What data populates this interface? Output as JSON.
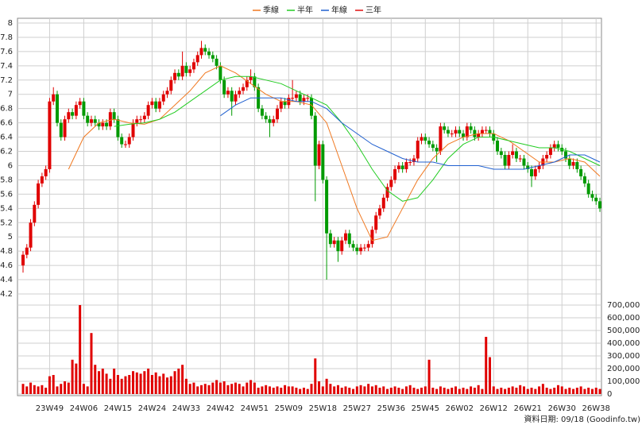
{
  "chart_data": {
    "type": "candlestick",
    "legend_position": "top",
    "grid": true,
    "up_color": "#e00000",
    "down_color": "#009a00",
    "volume_color": "#e00000",
    "footer": "資料日期: 09/18 (Goodinfo.tw)",
    "categories": [
      null,
      null,
      null,
      null,
      null,
      null,
      null,
      "23W49",
      null,
      null,
      null,
      null,
      null,
      null,
      null,
      null,
      "24W06",
      null,
      null,
      null,
      null,
      null,
      null,
      null,
      null,
      "24W15",
      null,
      null,
      null,
      null,
      null,
      null,
      null,
      null,
      "24W24",
      null,
      null,
      null,
      null,
      null,
      null,
      null,
      null,
      "24W33",
      null,
      null,
      null,
      null,
      null,
      null,
      null,
      null,
      "24W42",
      null,
      null,
      null,
      null,
      null,
      null,
      null,
      null,
      "24W51",
      null,
      null,
      null,
      null,
      null,
      null,
      null,
      null,
      "25W09",
      null,
      null,
      null,
      null,
      null,
      null,
      null,
      null,
      "25W18",
      null,
      null,
      null,
      null,
      null,
      null,
      null,
      null,
      "25W27",
      null,
      null,
      null,
      null,
      null,
      null,
      null,
      null,
      "25W36",
      null,
      null,
      null,
      null,
      null,
      null,
      null,
      null,
      "25W45",
      null,
      null,
      null,
      null,
      null,
      null,
      null,
      null,
      "26W02",
      null,
      null,
      null,
      null,
      null,
      null,
      null,
      null,
      "26W12",
      null,
      null,
      null,
      null,
      null,
      null,
      null,
      null,
      "26W21",
      null,
      null,
      null,
      null,
      null,
      null,
      null,
      null,
      "26W30",
      null,
      null,
      null,
      null,
      null,
      null,
      null,
      null,
      "26W38",
      null
    ],
    "open": [
      4.6,
      4.75,
      4.85,
      5.2,
      5.45,
      5.75,
      5.85,
      5.95,
      6.9,
      7.0,
      6.6,
      6.4,
      6.65,
      6.75,
      6.7,
      6.85,
      6.9,
      6.7,
      6.6,
      6.65,
      6.6,
      6.55,
      6.6,
      6.55,
      6.75,
      6.65,
      6.4,
      6.3,
      6.3,
      6.4,
      6.6,
      6.65,
      6.65,
      6.7,
      6.85,
      6.9,
      6.8,
      6.9,
      7.0,
      7.05,
      7.2,
      7.3,
      7.25,
      7.4,
      7.3,
      7.35,
      7.45,
      7.55,
      7.65,
      7.6,
      7.55,
      7.5,
      7.4,
      7.2,
      7.0,
      7.05,
      6.9,
      7.0,
      7.05,
      7.1,
      7.2,
      7.25,
      7.1,
      6.8,
      6.7,
      6.65,
      6.6,
      6.65,
      6.8,
      6.9,
      6.85,
      6.95,
      6.95,
      7.0,
      6.9,
      6.95,
      6.95,
      6.7,
      6.0,
      6.3,
      5.8,
      5.05,
      4.9,
      4.95,
      4.8,
      4.95,
      5.05,
      4.9,
      4.85,
      4.8,
      4.85,
      4.85,
      4.9,
      5.1,
      5.3,
      5.4,
      5.55,
      5.7,
      5.8,
      5.95,
      6.0,
      5.95,
      6.05,
      6.05,
      6.1,
      6.35,
      6.4,
      6.35,
      6.3,
      6.25,
      6.2,
      6.55,
      6.5,
      6.45,
      6.45,
      6.5,
      6.45,
      6.4,
      6.55,
      6.5,
      6.4,
      6.45,
      6.5,
      6.5,
      6.45,
      6.35,
      6.2,
      6.15,
      6.0,
      6.15,
      6.2,
      6.1,
      6.1,
      6.0,
      5.95,
      5.85,
      5.95,
      6.0,
      6.1,
      6.15,
      6.25,
      6.3,
      6.25,
      6.2,
      6.1,
      6.0,
      6.05,
      5.95,
      5.85,
      5.75,
      5.6,
      5.55,
      5.5
    ],
    "high": [
      4.8,
      4.9,
      5.25,
      5.5,
      5.8,
      5.9,
      6.0,
      6.95,
      7.1,
      7.05,
      6.65,
      6.7,
      6.8,
      6.8,
      6.9,
      6.95,
      6.95,
      6.75,
      6.7,
      6.7,
      6.65,
      6.65,
      6.65,
      6.8,
      6.8,
      6.7,
      6.45,
      6.35,
      6.45,
      6.65,
      6.7,
      6.7,
      6.75,
      6.9,
      6.95,
      6.95,
      6.95,
      7.05,
      7.1,
      7.25,
      7.35,
      7.35,
      7.6,
      7.45,
      7.4,
      7.5,
      7.6,
      7.75,
      7.7,
      7.65,
      7.6,
      7.55,
      7.45,
      7.25,
      7.1,
      7.1,
      7.05,
      7.1,
      7.15,
      7.25,
      7.35,
      7.3,
      7.15,
      6.85,
      6.75,
      6.7,
      6.7,
      6.85,
      6.95,
      6.95,
      7.0,
      7.2,
      7.05,
      7.05,
      7.0,
      7.0,
      7.0,
      6.75,
      6.35,
      6.35,
      5.85,
      5.1,
      5.0,
      5.0,
      5.0,
      5.1,
      5.1,
      4.95,
      4.9,
      4.9,
      4.9,
      4.95,
      5.15,
      5.35,
      5.45,
      5.6,
      5.75,
      5.85,
      6.0,
      6.05,
      6.05,
      6.1,
      6.1,
      6.15,
      6.4,
      6.45,
      6.45,
      6.4,
      6.35,
      6.3,
      6.6,
      6.6,
      6.55,
      6.5,
      6.55,
      6.55,
      6.5,
      6.6,
      6.6,
      6.55,
      6.5,
      6.55,
      6.55,
      6.55,
      6.5,
      6.4,
      6.25,
      6.2,
      6.2,
      6.3,
      6.25,
      6.15,
      6.15,
      6.05,
      6.0,
      6.0,
      6.05,
      6.15,
      6.2,
      6.3,
      6.35,
      6.35,
      6.3,
      6.25,
      6.15,
      6.1,
      6.1,
      6.0,
      5.9,
      5.8,
      5.65,
      5.6,
      5.55
    ],
    "low": [
      4.5,
      4.7,
      4.8,
      5.15,
      5.4,
      5.7,
      5.8,
      5.9,
      6.85,
      6.55,
      6.35,
      6.35,
      6.6,
      6.65,
      6.65,
      6.8,
      6.65,
      6.55,
      6.55,
      6.55,
      6.5,
      6.5,
      6.5,
      6.5,
      6.6,
      6.35,
      6.25,
      6.25,
      6.25,
      6.35,
      6.55,
      6.6,
      6.6,
      6.65,
      6.8,
      6.75,
      6.75,
      6.85,
      6.95,
      7.0,
      7.15,
      7.2,
      7.2,
      7.25,
      7.25,
      7.3,
      7.4,
      7.5,
      7.55,
      7.5,
      7.45,
      7.35,
      7.15,
      6.95,
      6.95,
      6.7,
      6.85,
      6.95,
      7.0,
      7.05,
      7.15,
      7.05,
      6.75,
      6.65,
      6.6,
      6.4,
      6.55,
      6.6,
      6.75,
      6.8,
      6.8,
      6.9,
      6.9,
      6.85,
      6.85,
      6.9,
      6.65,
      5.5,
      5.95,
      5.75,
      4.4,
      4.85,
      4.85,
      4.65,
      4.75,
      4.9,
      4.85,
      4.8,
      4.75,
      4.75,
      4.8,
      4.8,
      4.85,
      5.05,
      5.25,
      5.35,
      5.5,
      5.65,
      5.75,
      5.9,
      5.9,
      5.9,
      6.0,
      6.0,
      6.05,
      6.3,
      6.3,
      6.25,
      6.2,
      6.05,
      6.15,
      6.45,
      6.4,
      6.4,
      6.4,
      6.4,
      6.35,
      6.35,
      6.45,
      6.35,
      6.35,
      6.4,
      6.45,
      6.4,
      6.3,
      6.15,
      6.1,
      5.95,
      5.95,
      6.1,
      6.05,
      6.05,
      5.95,
      5.9,
      5.7,
      5.8,
      5.9,
      5.95,
      6.05,
      6.1,
      6.2,
      6.2,
      6.15,
      6.05,
      5.95,
      5.95,
      5.9,
      5.8,
      5.7,
      5.55,
      5.5,
      5.45,
      5.35
    ],
    "close": [
      4.75,
      4.85,
      5.2,
      5.45,
      5.75,
      5.85,
      5.95,
      6.9,
      7.0,
      6.6,
      6.4,
      6.65,
      6.75,
      6.7,
      6.85,
      6.9,
      6.7,
      6.6,
      6.65,
      6.6,
      6.55,
      6.6,
      6.55,
      6.75,
      6.65,
      6.4,
      6.3,
      6.3,
      6.4,
      6.6,
      6.65,
      6.65,
      6.7,
      6.85,
      6.9,
      6.8,
      6.9,
      7.0,
      7.05,
      7.2,
      7.3,
      7.25,
      7.4,
      7.3,
      7.35,
      7.45,
      7.55,
      7.65,
      7.6,
      7.55,
      7.5,
      7.4,
      7.2,
      7.0,
      7.05,
      6.9,
      7.0,
      7.05,
      7.1,
      7.2,
      7.25,
      7.1,
      6.8,
      6.7,
      6.65,
      6.6,
      6.65,
      6.8,
      6.9,
      6.85,
      6.95,
      6.95,
      7.0,
      6.9,
      6.95,
      6.95,
      6.7,
      6.0,
      6.3,
      5.8,
      5.05,
      4.9,
      4.95,
      4.8,
      4.95,
      5.05,
      4.9,
      4.85,
      4.8,
      4.85,
      4.85,
      4.9,
      5.1,
      5.3,
      5.4,
      5.55,
      5.7,
      5.8,
      5.95,
      6.0,
      5.95,
      6.05,
      6.05,
      6.1,
      6.35,
      6.4,
      6.35,
      6.3,
      6.25,
      6.2,
      6.55,
      6.5,
      6.45,
      6.45,
      6.5,
      6.45,
      6.4,
      6.55,
      6.5,
      6.4,
      6.45,
      6.5,
      6.5,
      6.45,
      6.35,
      6.2,
      6.15,
      6.0,
      6.15,
      6.2,
      6.1,
      6.1,
      6.0,
      5.95,
      5.85,
      5.95,
      6.0,
      6.1,
      6.15,
      6.25,
      6.3,
      6.25,
      6.2,
      6.1,
      6.0,
      6.05,
      5.95,
      5.85,
      5.75,
      5.6,
      5.55,
      5.5,
      5.4
    ],
    "volume": [
      80000,
      60000,
      90000,
      70000,
      60000,
      70000,
      50000,
      140000,
      150000,
      60000,
      80000,
      100000,
      90000,
      270000,
      240000,
      700000,
      80000,
      60000,
      480000,
      230000,
      180000,
      200000,
      160000,
      120000,
      200000,
      150000,
      120000,
      140000,
      150000,
      180000,
      170000,
      160000,
      180000,
      200000,
      150000,
      170000,
      140000,
      160000,
      130000,
      140000,
      180000,
      200000,
      230000,
      120000,
      80000,
      90000,
      60000,
      70000,
      80000,
      70000,
      90000,
      110000,
      90000,
      100000,
      70000,
      80000,
      90000,
      80000,
      60000,
      90000,
      110000,
      90000,
      50000,
      60000,
      70000,
      60000,
      50000,
      60000,
      50000,
      70000,
      60000,
      60000,
      50000,
      40000,
      50000,
      40000,
      80000,
      280000,
      100000,
      60000,
      120000,
      80000,
      60000,
      70000,
      50000,
      60000,
      50000,
      40000,
      60000,
      70000,
      60000,
      80000,
      60000,
      70000,
      50000,
      60000,
      40000,
      50000,
      60000,
      50000,
      40000,
      60000,
      70000,
      50000,
      40000,
      50000,
      60000,
      270000,
      50000,
      40000,
      60000,
      50000,
      40000,
      50000,
      60000,
      40000,
      50000,
      40000,
      60000,
      50000,
      70000,
      40000,
      450000,
      290000,
      60000,
      40000,
      50000,
      40000,
      50000,
      60000,
      50000,
      70000,
      60000,
      40000,
      50000,
      40000,
      60000,
      80000,
      50000,
      40000,
      50000,
      70000,
      60000,
      40000,
      50000,
      40000,
      50000,
      60000,
      40000,
      50000,
      40000,
      50000,
      40000
    ],
    "series": [
      {
        "name": "季線",
        "color": "#f07820",
        "x": [
          12,
          16,
          20,
          24,
          28,
          32,
          36,
          40,
          44,
          48,
          52,
          56,
          60,
          64,
          68,
          72,
          76,
          80,
          84,
          88,
          92,
          96,
          100,
          104,
          108,
          112,
          116,
          120,
          124,
          128,
          132,
          136,
          140,
          144,
          148,
          152
        ],
        "values": [
          5.95,
          6.4,
          6.6,
          6.65,
          6.6,
          6.58,
          6.65,
          6.85,
          7.05,
          7.3,
          7.4,
          7.3,
          7.15,
          7.0,
          6.9,
          6.9,
          6.85,
          6.6,
          6.0,
          5.4,
          4.95,
          5.0,
          5.4,
          5.8,
          6.1,
          6.3,
          6.4,
          6.45,
          6.45,
          6.35,
          6.2,
          6.05,
          6.05,
          6.1,
          6.05,
          5.85
        ]
      },
      {
        "name": "半年",
        "color": "#22cc22",
        "x": [
          24,
          28,
          32,
          36,
          40,
          44,
          48,
          52,
          56,
          60,
          64,
          68,
          72,
          76,
          80,
          84,
          88,
          92,
          96,
          100,
          104,
          108,
          112,
          116,
          120,
          124,
          128,
          132,
          136,
          140,
          144,
          148,
          152
        ],
        "values": [
          6.55,
          6.58,
          6.6,
          6.65,
          6.75,
          6.9,
          7.05,
          7.2,
          7.25,
          7.25,
          7.2,
          7.15,
          7.05,
          6.95,
          6.85,
          6.6,
          6.3,
          5.95,
          5.65,
          5.5,
          5.55,
          5.8,
          6.1,
          6.3,
          6.4,
          6.4,
          6.35,
          6.3,
          6.25,
          6.25,
          6.2,
          6.1,
          6.0
        ]
      },
      {
        "name": "年線",
        "color": "#2060d0",
        "x": [
          52,
          56,
          60,
          64,
          68,
          72,
          76,
          80,
          84,
          88,
          92,
          96,
          100,
          104,
          108,
          112,
          116,
          120,
          124,
          128,
          132,
          136,
          140,
          144,
          148,
          152
        ],
        "values": [
          6.7,
          6.85,
          6.95,
          6.95,
          6.95,
          6.9,
          6.9,
          6.8,
          6.6,
          6.45,
          6.3,
          6.2,
          6.1,
          6.05,
          6.05,
          6.0,
          6.0,
          6.0,
          5.95,
          5.95,
          5.95,
          6.0,
          6.05,
          6.15,
          6.15,
          6.05
        ]
      },
      {
        "name": "三年",
        "color": "#e01010",
        "x": [],
        "values": []
      }
    ],
    "ylim": [
      4.2,
      8
    ],
    "yticks": [
      4.2,
      4.4,
      4.6,
      4.8,
      5,
      5.2,
      5.4,
      5.6,
      5.8,
      6,
      6.2,
      6.4,
      6.6,
      6.8,
      7,
      7.2,
      7.4,
      7.6,
      7.8,
      8
    ],
    "y2lim": [
      0,
      700000
    ],
    "y2ticks": [
      0,
      {
        "value": 100000,
        "label": "100,000"
      },
      {
        "value": 200000,
        "label": "200,000"
      },
      {
        "value": 300000,
        "label": "300,000"
      },
      {
        "value": 400000,
        "label": "400,000"
      },
      {
        "value": 500000,
        "label": "500,000"
      },
      {
        "value": 600000,
        "label": "600,000"
      },
      {
        "value": 700000,
        "label": "700,000"
      }
    ]
  }
}
